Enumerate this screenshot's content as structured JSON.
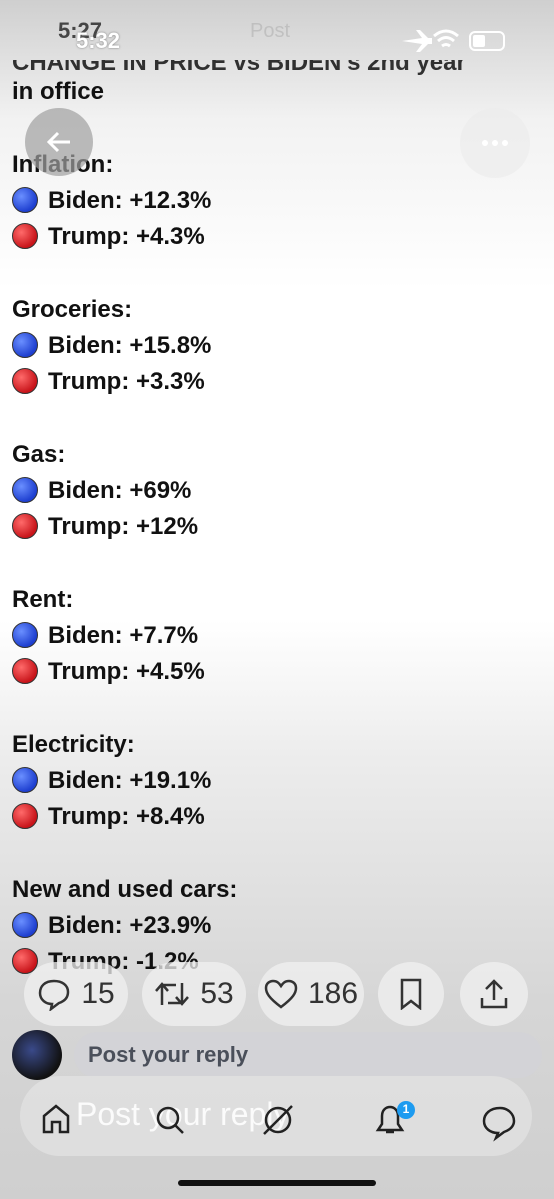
{
  "status_bar": {
    "time": "5:32",
    "time_behind": "5:27",
    "title_behind": "Post"
  },
  "post": {
    "heading_lines": [
      "CHANGE IN PRICE vs BIDEN's 2nd year",
      "in office"
    ],
    "sections": [
      {
        "heading": "Inflation:",
        "rows": [
          "Biden: +12.3%",
          "Trump: +4.3%"
        ]
      },
      {
        "heading": "Groceries:",
        "rows": [
          "Biden: +15.8%",
          "Trump: +3.3%"
        ]
      },
      {
        "heading": "Gas:",
        "rows": [
          "Biden: +69%",
          "Trump: +12%"
        ]
      },
      {
        "heading": "Rent:",
        "rows": [
          "Biden: +7.7%",
          "Trump: +4.5%"
        ]
      },
      {
        "heading": "Electricity:",
        "rows": [
          "Biden: +19.1%",
          "Trump: +8.4%"
        ]
      },
      {
        "heading": "New and used cars:",
        "rows": [
          "Biden: +23.9%",
          "Trump: -1.2%"
        ]
      }
    ]
  },
  "actions": {
    "replies": "15",
    "reposts": "53",
    "likes": "186"
  },
  "reply_bar": {
    "placeholder": "Post your reply"
  },
  "nav": {
    "ghost_text": "Post your reply",
    "notification_count": "1"
  }
}
